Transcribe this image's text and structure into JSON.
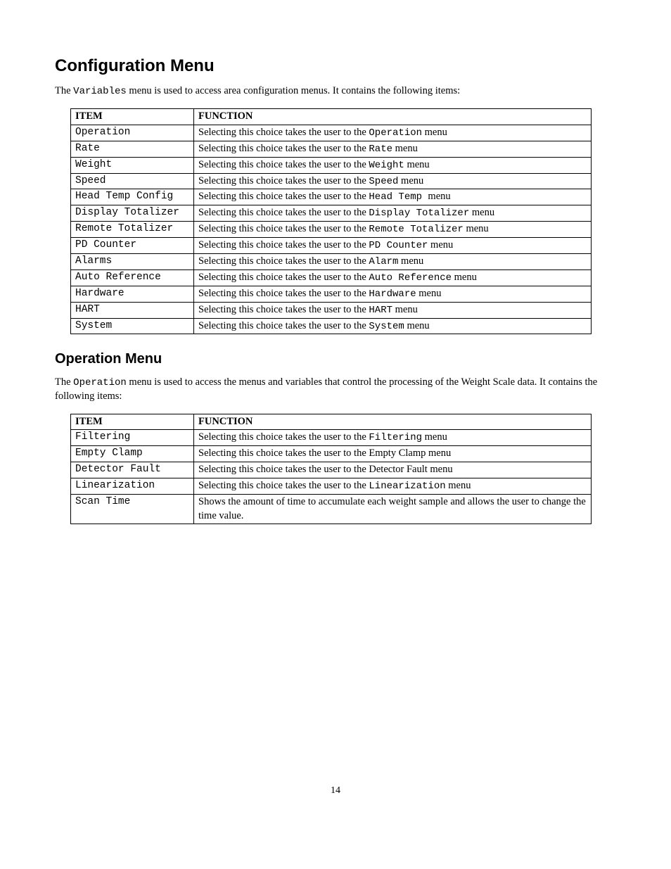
{
  "page_number": "14",
  "section1": {
    "title": "Configuration Menu",
    "intro_pre": "The ",
    "intro_mono": "Variables",
    "intro_post": " menu is used to access area configuration menus. It contains the following items:",
    "headers": {
      "item": "ITEM",
      "function": "FUNCTION"
    },
    "rows": [
      {
        "item": "Operation",
        "pre": "Selecting this choice takes the user to the ",
        "mono": "Operation",
        "post": " menu"
      },
      {
        "item": "Rate",
        "pre": "Selecting this choice takes the user to the ",
        "mono": "Rate",
        "post": " menu"
      },
      {
        "item": "Weight",
        "pre": "Selecting this choice takes the user to the ",
        "mono": "Weight",
        "post": " menu"
      },
      {
        "item": "Speed",
        "pre": "Selecting this choice takes the user to the ",
        "mono": "Speed",
        "post": " menu"
      },
      {
        "item": "Head Temp Config",
        "pre": "Selecting this choice takes the user to the ",
        "mono": "Head Temp ",
        "post": " menu"
      },
      {
        "item": "Display Totalizer",
        "pre": "Selecting this choice takes the user to the ",
        "mono": "Display Totalizer",
        "post": " menu"
      },
      {
        "item": "Remote Totalizer",
        "pre": "Selecting this choice takes the user to the ",
        "mono": "Remote Totalizer",
        "post": " menu"
      },
      {
        "item": "PD Counter",
        "pre": "Selecting this choice takes the user to the ",
        "mono": "PD Counter",
        "post": " menu"
      },
      {
        "item": "Alarms",
        "pre": "Selecting this choice takes the user to the ",
        "mono": "Alarm",
        "post": " menu"
      },
      {
        "item": "Auto Reference",
        "pre": "Selecting this choice takes the user to the ",
        "mono": "Auto Reference",
        "post": " menu"
      },
      {
        "item": "Hardware",
        "pre": "Selecting this choice takes the user to the ",
        "mono": "Hardware",
        "post": " menu"
      },
      {
        "item": "HART",
        "pre": "Selecting this choice takes the user to the ",
        "mono": "HART",
        "post": " menu"
      },
      {
        "item": "System",
        "pre": "Selecting this choice takes the user to the ",
        "mono": "System",
        "post": " menu"
      }
    ]
  },
  "section2": {
    "title": "Operation Menu",
    "intro_pre": "The ",
    "intro_mono": "Operation",
    "intro_post": " menu is used to access the menus and variables that control the processing of the Weight Scale data. It contains the following items:",
    "headers": {
      "item": "ITEM",
      "function": "FUNCTION"
    },
    "rows": [
      {
        "item": "Filtering",
        "pre": "Selecting this choice takes the user to the ",
        "mono": "Filtering",
        "post": " menu"
      },
      {
        "item": "Empty Clamp",
        "pre": "Selecting this choice takes the user to the Empty Clamp menu",
        "mono": "",
        "post": ""
      },
      {
        "item": "Detector Fault",
        "pre": "Selecting this choice takes the user to the Detector Fault menu",
        "mono": "",
        "post": ""
      },
      {
        "item": "Linearization",
        "pre": "Selecting this choice takes the user to the ",
        "mono": "Linearization",
        "post": " menu"
      },
      {
        "item": "Scan Time",
        "pre": "Shows the amount of time to accumulate each weight sample and allows the user to change the time value.",
        "mono": "",
        "post": ""
      }
    ]
  }
}
